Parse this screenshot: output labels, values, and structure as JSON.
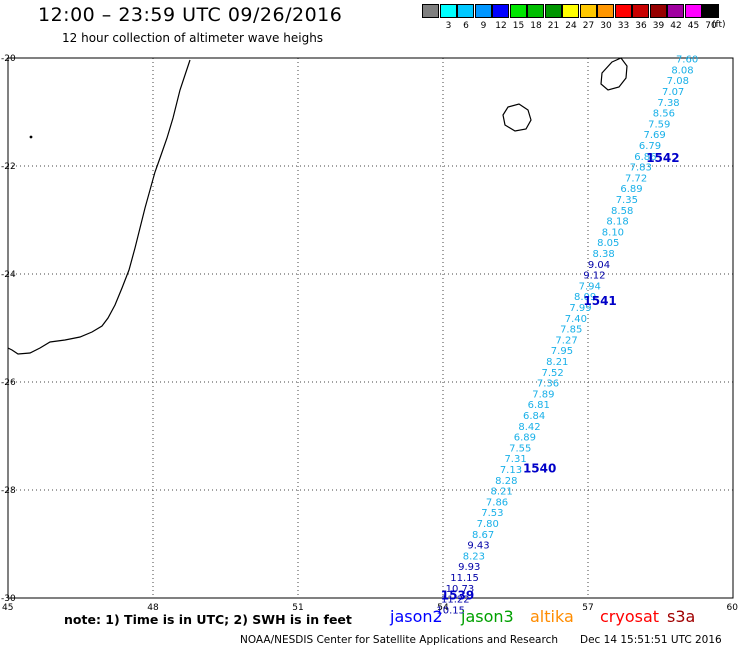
{
  "header": {
    "title": "12:00 – 23:59 UTC 09/26/2016",
    "subtitle": "12 hour collection of altimeter wave heighs"
  },
  "scale": {
    "unit": "(ft)",
    "items": [
      {
        "label": "",
        "color": "#7f7f7f"
      },
      {
        "label": "3",
        "color": "#00ffff"
      },
      {
        "label": "6",
        "color": "#00c8ff"
      },
      {
        "label": "9",
        "color": "#0096ff"
      },
      {
        "label": "12",
        "color": "#0000ff"
      },
      {
        "label": "15",
        "color": "#00e600"
      },
      {
        "label": "18",
        "color": "#00be00"
      },
      {
        "label": "21",
        "color": "#009600"
      },
      {
        "label": "24",
        "color": "#ffff00"
      },
      {
        "label": "27",
        "color": "#ffc800"
      },
      {
        "label": "30",
        "color": "#ff9600"
      },
      {
        "label": "33",
        "color": "#ff0000"
      },
      {
        "label": "36",
        "color": "#c80000"
      },
      {
        "label": "39",
        "color": "#960000"
      },
      {
        "label": "42",
        "color": "#a000a0"
      },
      {
        "label": "45",
        "color": "#ff00ff"
      },
      {
        "label": "70",
        "color": "#000000"
      }
    ]
  },
  "map": {
    "lon_range": [
      45,
      60
    ],
    "lat_range": [
      -30,
      -20
    ],
    "lon_ticks": [
      "45",
      "48",
      "51",
      "54",
      "57",
      "60"
    ],
    "lat_ticks": [
      "-20",
      "-22",
      "-24",
      "-26",
      "-28",
      "-30"
    ],
    "grid": "dotted",
    "colors": {
      "light": "#19b0e8",
      "dark": "#0000a8",
      "orbit": "#0000c8",
      "coast": "#000000"
    },
    "orbits": [
      {
        "label": "1542",
        "lon": 58.55,
        "lat": -21.85
      },
      {
        "label": "1541",
        "lon": 57.25,
        "lat": -24.5
      },
      {
        "label": "1540",
        "lon": 56.0,
        "lat": -27.6
      },
      {
        "label": "1539",
        "lon": 54.3,
        "lat": -29.95
      }
    ],
    "wave_heights": [
      {
        "v": "7.60",
        "lat": -20.03,
        "dark": false
      },
      {
        "v": "8.08",
        "lat": -20.23,
        "dark": false
      },
      {
        "v": "7.08",
        "lat": -20.43,
        "dark": false
      },
      {
        "v": "7.07",
        "lat": -20.63,
        "dark": false
      },
      {
        "v": "7.38",
        "lat": -20.83,
        "dark": false
      },
      {
        "v": "8.56",
        "lat": -21.03,
        "dark": false
      },
      {
        "v": "7.59",
        "lat": -21.23,
        "dark": false
      },
      {
        "v": "7.69",
        "lat": -21.43,
        "dark": false
      },
      {
        "v": "6.79",
        "lat": -21.63,
        "dark": false
      },
      {
        "v": "6.86",
        "lat": -21.83,
        "dark": false
      },
      {
        "v": "7.83",
        "lat": -22.03,
        "dark": false
      },
      {
        "v": "7.72",
        "lat": -22.23,
        "dark": false
      },
      {
        "v": "6.89",
        "lat": -22.43,
        "dark": false
      },
      {
        "v": "7.35",
        "lat": -22.63,
        "dark": false
      },
      {
        "v": "8.58",
        "lat": -22.83,
        "dark": false
      },
      {
        "v": "8.18",
        "lat": -23.03,
        "dark": false
      },
      {
        "v": "8.10",
        "lat": -23.23,
        "dark": false
      },
      {
        "v": "8.05",
        "lat": -23.43,
        "dark": false
      },
      {
        "v": "8.38",
        "lat": -23.63,
        "dark": false
      },
      {
        "v": "9.04",
        "lat": -23.83,
        "dark": true
      },
      {
        "v": "9.12",
        "lat": -24.03,
        "dark": true
      },
      {
        "v": "7.94",
        "lat": -24.23,
        "dark": false
      },
      {
        "v": "8.09",
        "lat": -24.43,
        "dark": false
      },
      {
        "v": "7.99",
        "lat": -24.63,
        "dark": false
      },
      {
        "v": "7.40",
        "lat": -24.83,
        "dark": false
      },
      {
        "v": "7.85",
        "lat": -25.03,
        "dark": false
      },
      {
        "v": "7.27",
        "lat": -25.23,
        "dark": false
      },
      {
        "v": "7.95",
        "lat": -25.43,
        "dark": false
      },
      {
        "v": "8.21",
        "lat": -25.63,
        "dark": false
      },
      {
        "v": "7.52",
        "lat": -25.83,
        "dark": false
      },
      {
        "v": "7.36",
        "lat": -26.03,
        "dark": false
      },
      {
        "v": "7.89",
        "lat": -26.23,
        "dark": false
      },
      {
        "v": "6.81",
        "lat": -26.43,
        "dark": false
      },
      {
        "v": "6.84",
        "lat": -26.63,
        "dark": false
      },
      {
        "v": "8.42",
        "lat": -26.83,
        "dark": false
      },
      {
        "v": "6.89",
        "lat": -27.03,
        "dark": false
      },
      {
        "v": "7.55",
        "lat": -27.23,
        "dark": false
      },
      {
        "v": "7.31",
        "lat": -27.43,
        "dark": false
      },
      {
        "v": "7.13",
        "lat": -27.63,
        "dark": false
      },
      {
        "v": "8.28",
        "lat": -27.83,
        "dark": false
      },
      {
        "v": "8.21",
        "lat": -28.03,
        "dark": false
      },
      {
        "v": "7.86",
        "lat": -28.23,
        "dark": false
      },
      {
        "v": "7.53",
        "lat": -28.43,
        "dark": false
      },
      {
        "v": "7.80",
        "lat": -28.63,
        "dark": false
      },
      {
        "v": "8.67",
        "lat": -28.83,
        "dark": false
      },
      {
        "v": "9.43",
        "lat": -29.03,
        "dark": true
      },
      {
        "v": "8.23",
        "lat": -29.23,
        "dark": false
      },
      {
        "v": "9.93",
        "lat": -29.43,
        "dark": true
      },
      {
        "v": "11.15",
        "lat": -29.63,
        "dark": true
      },
      {
        "v": "10.73",
        "lat": -29.83,
        "dark": true
      },
      {
        "v": "11.22",
        "lat": -30.03,
        "dark": true
      },
      {
        "v": "10.15",
        "lat": -30.23,
        "dark": true
      }
    ]
  },
  "footer": {
    "note": "note: 1) Time is in UTC; 2) SWH is in feet",
    "satellites": [
      {
        "name": "jason2",
        "color": "#0000ff"
      },
      {
        "name": "jason3",
        "color": "#00a000"
      },
      {
        "name": "altika",
        "color": "#ff8c00"
      },
      {
        "name": "cryosat",
        "color": "#ff0000"
      },
      {
        "name": "s3a",
        "color": "#a00000"
      }
    ],
    "credit": "NOAA/NESDIS Center for Satellite Applications and Research",
    "timestamp": "Dec 14 15:51:51 UTC 2016"
  }
}
